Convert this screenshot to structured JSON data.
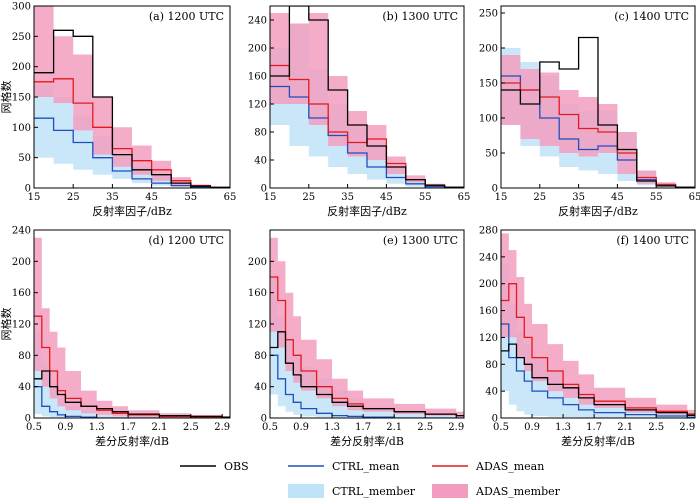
{
  "legend": {
    "obs": "OBS",
    "ctrl_mean": "CTRL_mean",
    "adas_mean": "ADAS_mean",
    "ctrl_member": "CTRL_member",
    "adas_member": "ADAS_member"
  },
  "colors": {
    "obs": "#000000",
    "ctrl_mean": "#1f4fbf",
    "adas_mean": "#e31a1c",
    "ctrl_member": "#bfe3f7",
    "adas_member": "#f29dbf"
  },
  "chart_data": [
    {
      "type": "line",
      "step": true,
      "title": "(a) 1200 UTC",
      "xlabel": "反射率因子/dBz",
      "ylabel": "网格数",
      "xlim": [
        15,
        65
      ],
      "ylim": [
        0,
        300
      ],
      "xticks": [
        15,
        25,
        35,
        45,
        55,
        65
      ],
      "yticks": [
        0,
        50,
        100,
        150,
        200,
        250,
        300
      ],
      "x": [
        15,
        20,
        25,
        30,
        35,
        40,
        45,
        50,
        55,
        60,
        65
      ],
      "series": [
        {
          "name": "OBS",
          "values": [
            190,
            260,
            250,
            150,
            55,
            30,
            22,
            8,
            3,
            1,
            0
          ]
        },
        {
          "name": "CTRL_mean",
          "values": [
            115,
            95,
            75,
            50,
            28,
            15,
            8,
            4,
            2,
            1,
            0
          ]
        },
        {
          "name": "ADAS_mean",
          "values": [
            175,
            180,
            140,
            100,
            65,
            45,
            30,
            12,
            4,
            1,
            0
          ]
        },
        {
          "name": "CTRL_member",
          "low": [
            50,
            40,
            30,
            22,
            15,
            8,
            4,
            2,
            1,
            0,
            0
          ],
          "high": [
            170,
            150,
            120,
            85,
            55,
            35,
            20,
            8,
            3,
            1,
            0
          ]
        },
        {
          "name": "ADAS_member",
          "low": [
            150,
            140,
            95,
            55,
            35,
            22,
            12,
            5,
            2,
            0,
            0
          ],
          "high": [
            330,
            250,
            220,
            150,
            100,
            70,
            45,
            18,
            6,
            2,
            0
          ]
        }
      ]
    },
    {
      "type": "line",
      "step": true,
      "title": "(b) 1300 UTC",
      "xlabel": "反射率因子/dBz",
      "ylabel": "",
      "xlim": [
        15,
        65
      ],
      "ylim": [
        0,
        260
      ],
      "xticks": [
        15,
        25,
        35,
        45,
        55,
        65
      ],
      "yticks": [
        0,
        40,
        80,
        120,
        160,
        200,
        240
      ],
      "x": [
        15,
        20,
        25,
        30,
        35,
        40,
        45,
        50,
        55,
        60,
        65
      ],
      "series": [
        {
          "name": "OBS",
          "values": [
            160,
            260,
            240,
            140,
            90,
            60,
            30,
            12,
            4,
            1,
            0
          ]
        },
        {
          "name": "CTRL_mean",
          "values": [
            145,
            130,
            100,
            75,
            50,
            30,
            15,
            6,
            2,
            1,
            0
          ]
        },
        {
          "name": "ADAS_mean",
          "values": [
            175,
            155,
            120,
            80,
            65,
            70,
            35,
            12,
            4,
            1,
            0
          ]
        },
        {
          "name": "CTRL_member",
          "low": [
            90,
            60,
            45,
            30,
            20,
            12,
            6,
            2,
            1,
            0,
            0
          ],
          "high": [
            200,
            235,
            170,
            120,
            90,
            60,
            30,
            12,
            4,
            1,
            0
          ]
        },
        {
          "name": "ADAS_member",
          "low": [
            120,
            120,
            90,
            60,
            45,
            40,
            20,
            8,
            2,
            0,
            0
          ],
          "high": [
            250,
            235,
            250,
            160,
            110,
            90,
            45,
            18,
            6,
            2,
            0
          ]
        }
      ]
    },
    {
      "type": "line",
      "step": true,
      "title": "(c) 1400 UTC",
      "xlabel": "反射率因子/dBz",
      "ylabel": "",
      "xlim": [
        15,
        65
      ],
      "ylim": [
        0,
        260
      ],
      "xticks": [
        15,
        25,
        35,
        45,
        55,
        65
      ],
      "yticks": [
        0,
        50,
        100,
        150,
        200,
        250
      ],
      "x": [
        15,
        20,
        25,
        30,
        35,
        40,
        45,
        50,
        55,
        60,
        65
      ],
      "series": [
        {
          "name": "OBS",
          "values": [
            140,
            120,
            180,
            170,
            215,
            90,
            55,
            10,
            3,
            1,
            0
          ]
        },
        {
          "name": "CTRL_mean",
          "values": [
            160,
            140,
            100,
            70,
            55,
            60,
            40,
            12,
            4,
            1,
            0
          ]
        },
        {
          "name": "ADAS_mean",
          "values": [
            150,
            140,
            130,
            105,
            85,
            80,
            50,
            15,
            5,
            1,
            0
          ]
        },
        {
          "name": "CTRL_member",
          "low": [
            90,
            60,
            45,
            30,
            25,
            20,
            10,
            4,
            1,
            0,
            0
          ],
          "high": [
            200,
            180,
            160,
            120,
            110,
            110,
            80,
            25,
            8,
            2,
            0
          ]
        },
        {
          "name": "ADAS_member",
          "low": [
            90,
            70,
            60,
            50,
            45,
            50,
            20,
            6,
            2,
            0,
            0
          ],
          "high": [
            190,
            170,
            165,
            140,
            130,
            120,
            80,
            25,
            8,
            2,
            0
          ]
        }
      ]
    },
    {
      "type": "line",
      "step": true,
      "title": "(d) 1200 UTC",
      "xlabel": "差分反射率/dB",
      "ylabel": "网格数",
      "xlim": [
        0.5,
        3.0
      ],
      "ylim": [
        0,
        240
      ],
      "xticks": [
        0.5,
        0.9,
        1.3,
        1.7,
        2.1,
        2.5,
        2.9
      ],
      "yticks": [
        0,
        40,
        80,
        120,
        160,
        200,
        240
      ],
      "x": [
        0.5,
        0.6,
        0.7,
        0.8,
        0.9,
        1.1,
        1.3,
        1.5,
        1.7,
        2.1,
        2.5,
        2.9,
        3.0
      ],
      "series": [
        {
          "name": "OBS",
          "values": [
            50,
            60,
            40,
            30,
            20,
            15,
            12,
            8,
            5,
            3,
            2,
            1,
            0
          ]
        },
        {
          "name": "CTRL_mean",
          "values": [
            40,
            15,
            8,
            4,
            2,
            1,
            0,
            0,
            0,
            0,
            0,
            0,
            0
          ]
        },
        {
          "name": "ADAS_mean",
          "values": [
            130,
            90,
            60,
            35,
            25,
            15,
            10,
            6,
            4,
            2,
            1,
            0,
            0
          ]
        },
        {
          "name": "CTRL_member",
          "low": [
            5,
            2,
            1,
            0,
            0,
            0,
            0,
            0,
            0,
            0,
            0,
            0,
            0
          ],
          "high": [
            110,
            70,
            45,
            25,
            15,
            8,
            4,
            2,
            1,
            0,
            0,
            0,
            0
          ]
        },
        {
          "name": "ADAS_member",
          "low": [
            60,
            40,
            25,
            15,
            10,
            6,
            4,
            2,
            1,
            0,
            0,
            0,
            0
          ],
          "high": [
            230,
            140,
            110,
            90,
            60,
            35,
            22,
            15,
            10,
            6,
            4,
            2,
            0
          ]
        }
      ]
    },
    {
      "type": "line",
      "step": true,
      "title": "(e) 1300 UTC",
      "xlabel": "差分反射率/dB",
      "ylabel": "",
      "xlim": [
        0.5,
        3.0
      ],
      "ylim": [
        0,
        240
      ],
      "xticks": [
        0.5,
        0.9,
        1.3,
        1.7,
        2.1,
        2.5,
        2.9
      ],
      "yticks": [
        0,
        40,
        80,
        120,
        160,
        200
      ],
      "x": [
        0.5,
        0.6,
        0.7,
        0.8,
        0.9,
        1.1,
        1.3,
        1.5,
        1.7,
        2.1,
        2.5,
        2.9,
        3.0
      ],
      "series": [
        {
          "name": "OBS",
          "values": [
            90,
            110,
            70,
            55,
            40,
            30,
            20,
            15,
            12,
            8,
            5,
            3,
            0
          ]
        },
        {
          "name": "CTRL_mean",
          "values": [
            80,
            50,
            30,
            20,
            12,
            6,
            3,
            2,
            1,
            0,
            0,
            0,
            0
          ]
        },
        {
          "name": "ADAS_mean",
          "values": [
            180,
            150,
            100,
            80,
            60,
            40,
            25,
            18,
            12,
            8,
            5,
            3,
            0
          ]
        },
        {
          "name": "CTRL_member",
          "low": [
            30,
            15,
            8,
            4,
            2,
            1,
            0,
            0,
            0,
            0,
            0,
            0,
            0
          ],
          "high": [
            180,
            130,
            100,
            80,
            65,
            50,
            35,
            25,
            15,
            10,
            6,
            3,
            0
          ]
        },
        {
          "name": "ADAS_member",
          "low": [
            110,
            90,
            60,
            45,
            35,
            25,
            15,
            10,
            8,
            5,
            3,
            1,
            0
          ],
          "high": [
            230,
            200,
            160,
            130,
            100,
            75,
            50,
            35,
            25,
            18,
            12,
            8,
            0
          ]
        }
      ]
    },
    {
      "type": "line",
      "step": true,
      "title": "(f) 1400 UTC",
      "xlabel": "差分反射率/dB",
      "ylabel": "",
      "xlim": [
        0.5,
        3.0
      ],
      "ylim": [
        0,
        280
      ],
      "xticks": [
        0.5,
        0.9,
        1.3,
        1.7,
        2.1,
        2.5,
        2.9
      ],
      "yticks": [
        0,
        40,
        80,
        120,
        160,
        200,
        240,
        280
      ],
      "x": [
        0.5,
        0.6,
        0.7,
        0.8,
        0.9,
        1.1,
        1.3,
        1.5,
        1.7,
        2.1,
        2.5,
        2.9,
        3.0
      ],
      "series": [
        {
          "name": "OBS",
          "values": [
            100,
            110,
            90,
            80,
            60,
            50,
            45,
            30,
            20,
            12,
            8,
            4,
            0
          ]
        },
        {
          "name": "CTRL_mean",
          "values": [
            140,
            90,
            70,
            55,
            40,
            30,
            20,
            12,
            8,
            5,
            3,
            1,
            0
          ]
        },
        {
          "name": "ADAS_mean",
          "values": [
            175,
            200,
            150,
            120,
            90,
            70,
            50,
            35,
            25,
            15,
            10,
            6,
            0
          ]
        },
        {
          "name": "CTRL_member",
          "low": [
            40,
            20,
            10,
            5,
            3,
            2,
            1,
            0,
            0,
            0,
            0,
            0,
            0
          ],
          "high": [
            230,
            170,
            130,
            110,
            90,
            70,
            50,
            35,
            25,
            15,
            10,
            5,
            0
          ]
        },
        {
          "name": "ADAS_member",
          "low": [
            120,
            120,
            90,
            70,
            55,
            40,
            30,
            20,
            15,
            8,
            5,
            3,
            0
          ],
          "high": [
            275,
            250,
            210,
            170,
            140,
            110,
            85,
            65,
            45,
            30,
            20,
            12,
            0
          ]
        }
      ]
    }
  ]
}
